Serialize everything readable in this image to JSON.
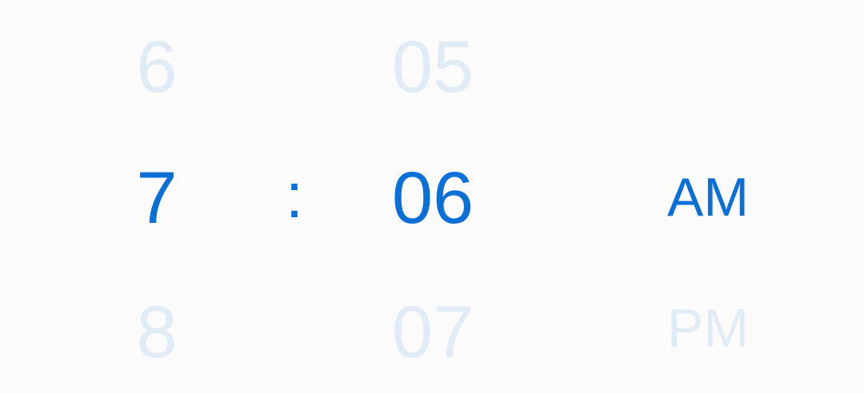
{
  "time_picker": {
    "hour": {
      "prev": "6",
      "selected": "7",
      "next": "8"
    },
    "separator": ":",
    "minute": {
      "prev": "05",
      "selected": "06",
      "next": "07"
    },
    "period": {
      "selected": "AM",
      "next": "PM"
    },
    "colors": {
      "selected": "#0b6fd8",
      "dimmed": "#e1ebf6",
      "background": "#fbfbfb"
    }
  }
}
